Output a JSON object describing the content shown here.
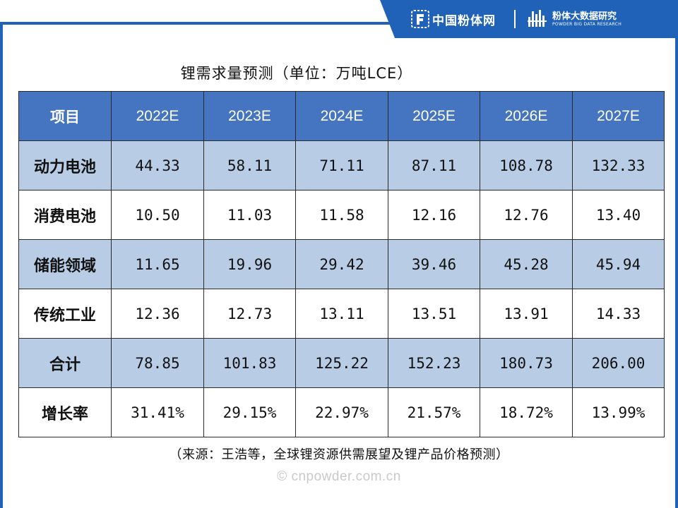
{
  "brand": {
    "name": "中国粉体网",
    "data_name": "粉体大数据研究",
    "data_sub": "POWDER BIG DATA RESEARCH"
  },
  "title": "锂需求量预测（单位：万吨LCE）",
  "chart_data": {
    "type": "table",
    "title": "锂需求量预测（单位：万吨LCE）",
    "columns": [
      "项目",
      "2022E",
      "2023E",
      "2024E",
      "2025E",
      "2026E",
      "2027E"
    ],
    "rows": [
      {
        "label": "动力电池",
        "values": [
          "44.33",
          "58.11",
          "71.11",
          "87.11",
          "108.78",
          "132.33"
        ]
      },
      {
        "label": "消费电池",
        "values": [
          "10.50",
          "11.03",
          "11.58",
          "12.16",
          "12.76",
          "13.40"
        ]
      },
      {
        "label": "储能领域",
        "values": [
          "11.65",
          "19.96",
          "29.42",
          "39.46",
          "45.28",
          "45.94"
        ]
      },
      {
        "label": "传统工业",
        "values": [
          "12.36",
          "12.73",
          "13.11",
          "13.51",
          "13.91",
          "14.33"
        ]
      },
      {
        "label": "合计",
        "values": [
          "78.85",
          "101.83",
          "125.22",
          "152.23",
          "180.73",
          "206.00"
        ]
      },
      {
        "label": "增长率",
        "values": [
          "31.41%",
          "29.15%",
          "22.97%",
          "21.57%",
          "18.72%",
          "13.99%"
        ]
      }
    ]
  },
  "source": "（来源：王浩等，全球锂资源供需展望及锂产品价格预测）",
  "watermark": "© cnpowder.com.cn",
  "colors": {
    "frame": "#1f62b7",
    "header_bg": "#4575c0",
    "shaded_row": "#b8cce6",
    "plain_row": "#ffffff"
  }
}
